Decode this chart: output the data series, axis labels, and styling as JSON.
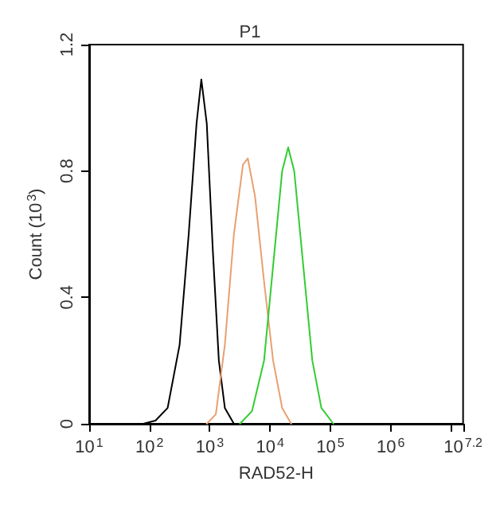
{
  "chart_data": {
    "type": "line",
    "title": "P1",
    "xlabel": "RAD52-H",
    "ylabel": "Count (10$^{3}$)",
    "log": "x",
    "grid": false,
    "marker": "none",
    "line_style": "solid",
    "xlim": [
      10,
      15848932
    ],
    "xticks": [
      {
        "value": 10,
        "label": "10$^{1}$"
      },
      {
        "value": 100,
        "label": "10$^{2}$"
      },
      {
        "value": 1000,
        "label": "10$^{3}$"
      },
      {
        "value": 10000,
        "label": "10$^{4}$"
      },
      {
        "value": 100000,
        "label": "10$^{5}$"
      },
      {
        "value": 1000000,
        "label": "10$^{6}$"
      },
      {
        "value": 10000000,
        "label": null
      },
      {
        "value": 15848932,
        "label": "10$^{7.2}$"
      }
    ],
    "ylim": [
      0,
      1.2
    ],
    "yticks": [
      0,
      0.4,
      0.8,
      1.2
    ],
    "series": [
      {
        "color": "#000000",
        "x": [
          79,
          126,
          200,
          316,
          447,
          603,
          724,
          891,
          1122,
          1413,
          1778,
          2512
        ],
        "values": [
          0,
          0.01,
          0.05,
          0.25,
          0.6,
          0.95,
          1.09,
          0.95,
          0.55,
          0.2,
          0.05,
          0
        ]
      },
      {
        "color": "#e8a070",
        "x": [
          891,
          1259,
          1778,
          2512,
          3548,
          4266,
          5623,
          7943,
          11220,
          15849,
          22387
        ],
        "values": [
          0,
          0.03,
          0.25,
          0.6,
          0.82,
          0.84,
          0.72,
          0.45,
          0.2,
          0.05,
          0
        ]
      },
      {
        "color": "#33cc33",
        "x": [
          3162,
          5012,
          7943,
          11220,
          15849,
          19953,
          25119,
          35481,
          50119,
          70795,
          112202
        ],
        "values": [
          0,
          0.04,
          0.2,
          0.5,
          0.8,
          0.875,
          0.8,
          0.5,
          0.2,
          0.05,
          0
        ]
      }
    ]
  }
}
